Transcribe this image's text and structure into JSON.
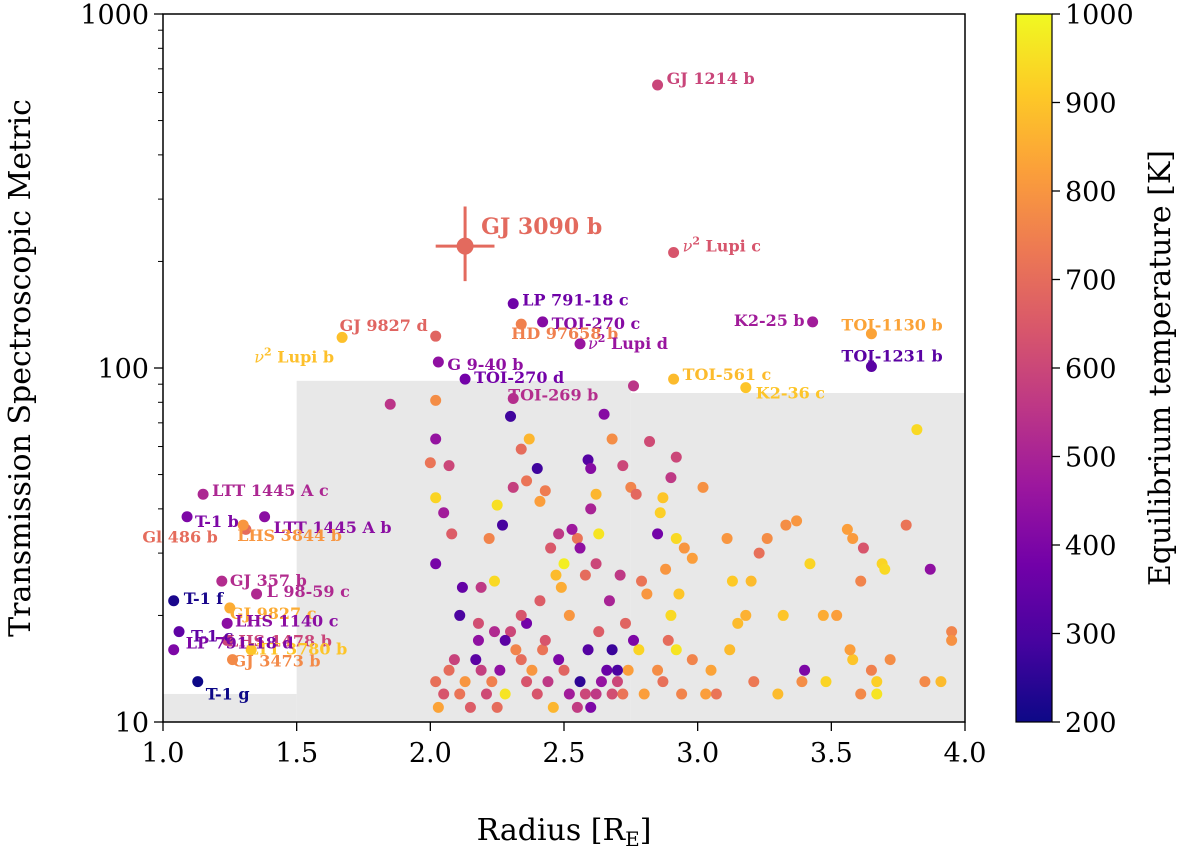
{
  "chart_data": {
    "type": "scatter",
    "xlabel": "Radius [R",
    "xlabel_sub": "E",
    "xlabel_end": "]",
    "ylabel": "Transmission Spectroscopic Metric",
    "xlim": [
      1.0,
      4.0
    ],
    "ylim": [
      10,
      1000
    ],
    "yscale": "log",
    "x_ticks": [
      "1.0",
      "1.5",
      "2.0",
      "2.5",
      "3.0",
      "3.5",
      "4.0"
    ],
    "y_ticks": [
      "10",
      "100",
      "1000"
    ],
    "colorbar": {
      "label": "Equilibrium temperature [K]",
      "range": [
        200,
        1000
      ],
      "ticks": [
        "200",
        "300",
        "400",
        "500",
        "600",
        "700",
        "800",
        "900",
        "1000"
      ],
      "colors": [
        "#0d0887",
        "#46039f",
        "#7201a8",
        "#9c179e",
        "#bd3786",
        "#d8576b",
        "#ed7953",
        "#fb9f3a",
        "#fdca26",
        "#f0f921"
      ]
    },
    "shaded_regions": [
      {
        "x": [
          1.0,
          1.5
        ],
        "y": [
          10,
          12
        ]
      },
      {
        "x": [
          1.5,
          2.75
        ],
        "y": [
          10,
          92
        ]
      },
      {
        "x": [
          2.75,
          4.0
        ],
        "y": [
          10,
          85
        ]
      }
    ],
    "highlight": {
      "name": "GJ 3090 b",
      "x": 2.13,
      "y": 221,
      "xerr": 0.11,
      "yerr_lo": 45,
      "yerr_hi": 65,
      "teq": 693
    },
    "labeled_planets": [
      {
        "name": "GJ 1214 b",
        "x": 2.85,
        "y": 630,
        "teq": 596
      },
      {
        "name": "ν² Lupi c",
        "prefix": "ν",
        "sup": "2",
        "suffix": " Lupi c",
        "x": 2.91,
        "y": 212,
        "teq": 640
      },
      {
        "name": "LP 791-18 c",
        "x": 2.31,
        "y": 152,
        "teq": 370
      },
      {
        "name": "TOI-270 c",
        "x": 2.42,
        "y": 135,
        "teq": 420
      },
      {
        "name": "GJ 9827 d",
        "x": 2.02,
        "y": 123,
        "teq": 680
      },
      {
        "name": "HD 97658 b",
        "x": 2.34,
        "y": 133,
        "teq": 750
      },
      {
        "name": "ν² Lupi d",
        "prefix": "ν",
        "sup": "2",
        "suffix": " Lupi d",
        "x": 2.56,
        "y": 117,
        "teq": 460
      },
      {
        "name": "ν² Lupi b",
        "prefix": "ν",
        "sup": "2",
        "suffix": " Lupi b",
        "x": 1.67,
        "y": 122,
        "teq": 890
      },
      {
        "name": "K2-25 b",
        "x": 3.43,
        "y": 135,
        "teq": 480
      },
      {
        "name": "TOI-1130 b",
        "x": 3.65,
        "y": 125,
        "teq": 830
      },
      {
        "name": "TOI-1231 b",
        "x": 3.65,
        "y": 101,
        "teq": 330
      },
      {
        "name": "G 9-40 b",
        "x": 2.03,
        "y": 104,
        "teq": 440
      },
      {
        "name": "TOI-270 d",
        "x": 2.13,
        "y": 93,
        "teq": 380
      },
      {
        "name": "TOI-561 c",
        "x": 2.91,
        "y": 93,
        "teq": 880
      },
      {
        "name": "K2-36 c",
        "x": 3.18,
        "y": 88,
        "teq": 900
      },
      {
        "name": "TOI-269 b",
        "x": 2.31,
        "y": 82,
        "teq": 530
      },
      {
        "name": "LTT 1445 A c",
        "x": 1.15,
        "y": 44,
        "teq": 510
      },
      {
        "name": "T-1 b",
        "x": 1.09,
        "y": 38,
        "teq": 400
      },
      {
        "name": "LTT 1445 A b",
        "x": 1.38,
        "y": 38,
        "teq": 430
      },
      {
        "name": "Gl 486 b",
        "x": 1.31,
        "y": 35,
        "teq": 700
      },
      {
        "name": "LHS 3844 b",
        "x": 1.3,
        "y": 36,
        "teq": 800
      },
      {
        "name": "GJ 357 b",
        "x": 1.22,
        "y": 25,
        "teq": 525
      },
      {
        "name": "T-1 f",
        "x": 1.04,
        "y": 22,
        "teq": 220
      },
      {
        "name": "L 98-59 c",
        "x": 1.35,
        "y": 23,
        "teq": 517
      },
      {
        "name": "GJ 9827 c",
        "x": 1.25,
        "y": 21,
        "teq": 850
      },
      {
        "name": "LHS 1140 c",
        "x": 1.24,
        "y": 19,
        "teq": 430
      },
      {
        "name": "LHS 1478 b",
        "x": 1.24,
        "y": 17,
        "teq": 595
      },
      {
        "name": "T-1 c",
        "x": 1.06,
        "y": 18,
        "teq": 340
      },
      {
        "name": "LTT 3780 b",
        "x": 1.33,
        "y": 16,
        "teq": 900
      },
      {
        "name": "LP 791-18 d",
        "x": 1.04,
        "y": 16,
        "teq": 400
      },
      {
        "name": "GJ 3473 b",
        "x": 1.26,
        "y": 15,
        "teq": 773
      },
      {
        "name": "T-1 g",
        "x": 1.13,
        "y": 13,
        "teq": 200
      }
    ],
    "points": [
      [
        1.85,
        79,
        550
      ],
      [
        2.02,
        81,
        780
      ],
      [
        2.02,
        63,
        450
      ],
      [
        2.0,
        54,
        720
      ],
      [
        2.07,
        53,
        600
      ],
      [
        2.02,
        43,
        930
      ],
      [
        2.05,
        39,
        480
      ],
      [
        2.02,
        28,
        390
      ],
      [
        2.08,
        34,
        660
      ],
      [
        2.12,
        24,
        350
      ],
      [
        2.11,
        20,
        300
      ],
      [
        2.18,
        19,
        620
      ],
      [
        2.19,
        24,
        560
      ],
      [
        2.24,
        25,
        940
      ],
      [
        2.22,
        33,
        760
      ],
      [
        2.25,
        41,
        950
      ],
      [
        2.27,
        36,
        290
      ],
      [
        2.31,
        46,
        580
      ],
      [
        2.3,
        73,
        280
      ],
      [
        2.34,
        59,
        700
      ],
      [
        2.37,
        63,
        870
      ],
      [
        2.36,
        48,
        720
      ],
      [
        2.4,
        52,
        280
      ],
      [
        2.41,
        42,
        820
      ],
      [
        2.43,
        45,
        740
      ],
      [
        2.45,
        31,
        650
      ],
      [
        2.48,
        34,
        560
      ],
      [
        2.5,
        28,
        980
      ],
      [
        2.47,
        26,
        880
      ],
      [
        2.55,
        33,
        720
      ],
      [
        2.53,
        35,
        470
      ],
      [
        2.56,
        31,
        440
      ],
      [
        2.59,
        55,
        320
      ],
      [
        2.6,
        52,
        420
      ],
      [
        2.62,
        44,
        870
      ],
      [
        2.63,
        34,
        960
      ],
      [
        2.6,
        40,
        500
      ],
      [
        2.65,
        74,
        420
      ],
      [
        2.68,
        63,
        780
      ],
      [
        2.72,
        53,
        600
      ],
      [
        2.75,
        46,
        760
      ],
      [
        2.77,
        44,
        690
      ],
      [
        2.76,
        89,
        550
      ],
      [
        2.82,
        62,
        610
      ],
      [
        2.86,
        39,
        920
      ],
      [
        2.85,
        34,
        380
      ],
      [
        2.9,
        49,
        560
      ],
      [
        2.87,
        43,
        900
      ],
      [
        2.92,
        56,
        600
      ],
      [
        3.02,
        46,
        790
      ],
      [
        2.95,
        31,
        800
      ],
      [
        2.93,
        23,
        900
      ],
      [
        2.92,
        33,
        940
      ],
      [
        2.98,
        29,
        820
      ],
      [
        3.11,
        33,
        800
      ],
      [
        3.13,
        25,
        910
      ],
      [
        3.18,
        20,
        860
      ],
      [
        3.23,
        30,
        710
      ],
      [
        3.26,
        33,
        780
      ],
      [
        3.33,
        36,
        780
      ],
      [
        3.37,
        37,
        800
      ],
      [
        3.42,
        28,
        930
      ],
      [
        3.56,
        35,
        820
      ],
      [
        3.58,
        33,
        810
      ],
      [
        3.62,
        31,
        640
      ],
      [
        3.69,
        28,
        930
      ],
      [
        3.7,
        27,
        940
      ],
      [
        3.78,
        36,
        720
      ],
      [
        3.82,
        67,
        940
      ],
      [
        3.87,
        27,
        440
      ],
      [
        3.95,
        18,
        760
      ],
      [
        3.95,
        17,
        790
      ],
      [
        3.91,
        13,
        880
      ],
      [
        3.85,
        13,
        770
      ],
      [
        3.72,
        15,
        780
      ],
      [
        3.67,
        13,
        920
      ],
      [
        3.67,
        12,
        960
      ],
      [
        3.65,
        14,
        750
      ],
      [
        3.61,
        12,
        770
      ],
      [
        3.58,
        15,
        900
      ],
      [
        3.57,
        16,
        820
      ],
      [
        3.52,
        20,
        820
      ],
      [
        3.48,
        13,
        930
      ],
      [
        3.4,
        14,
        400
      ],
      [
        3.39,
        13,
        780
      ],
      [
        3.3,
        12,
        880
      ],
      [
        3.21,
        13,
        730
      ],
      [
        3.2,
        25,
        880
      ],
      [
        3.15,
        19,
        880
      ],
      [
        3.12,
        16,
        880
      ],
      [
        3.07,
        12,
        720
      ],
      [
        3.05,
        14,
        830
      ],
      [
        3.03,
        12,
        820
      ],
      [
        2.98,
        15,
        760
      ],
      [
        2.94,
        12,
        760
      ],
      [
        2.92,
        16,
        960
      ],
      [
        2.9,
        20,
        940
      ],
      [
        2.89,
        17,
        700
      ],
      [
        2.87,
        13,
        710
      ],
      [
        2.85,
        14,
        780
      ],
      [
        2.8,
        12,
        820
      ],
      [
        2.78,
        16,
        930
      ],
      [
        2.76,
        17,
        400
      ],
      [
        2.74,
        14,
        820
      ],
      [
        2.72,
        12,
        720
      ],
      [
        2.7,
        13,
        600
      ],
      [
        2.7,
        14,
        300
      ],
      [
        2.68,
        12,
        620
      ],
      [
        2.66,
        14,
        360
      ],
      [
        2.64,
        13,
        450
      ],
      [
        2.62,
        12,
        560
      ],
      [
        2.6,
        11,
        400
      ],
      [
        2.58,
        12,
        600
      ],
      [
        2.56,
        13,
        250
      ],
      [
        2.55,
        11,
        570
      ],
      [
        2.52,
        12,
        480
      ],
      [
        2.5,
        14,
        680
      ],
      [
        2.48,
        15,
        400
      ],
      [
        2.46,
        11,
        870
      ],
      [
        2.44,
        13,
        560
      ],
      [
        2.42,
        16,
        720
      ],
      [
        2.4,
        12,
        640
      ],
      [
        2.38,
        14,
        800
      ],
      [
        2.36,
        13,
        640
      ],
      [
        2.34,
        15,
        700
      ],
      [
        2.32,
        16,
        760
      ],
      [
        2.3,
        18,
        600
      ],
      [
        2.28,
        12,
        960
      ],
      [
        2.26,
        14,
        440
      ],
      [
        2.25,
        11,
        700
      ],
      [
        2.23,
        13,
        750
      ],
      [
        2.21,
        12,
        610
      ],
      [
        2.19,
        14,
        580
      ],
      [
        2.17,
        15,
        330
      ],
      [
        2.15,
        11,
        660
      ],
      [
        2.13,
        13,
        800
      ],
      [
        2.11,
        12,
        720
      ],
      [
        2.09,
        15,
        590
      ],
      [
        2.07,
        14,
        700
      ],
      [
        2.05,
        12,
        640
      ],
      [
        2.03,
        11,
        830
      ],
      [
        2.02,
        13,
        710
      ],
      [
        2.24,
        18,
        520
      ],
      [
        2.28,
        17,
        330
      ],
      [
        2.36,
        19,
        380
      ],
      [
        2.43,
        17,
        640
      ],
      [
        2.52,
        20,
        800
      ],
      [
        2.63,
        18,
        660
      ],
      [
        2.73,
        19,
        680
      ],
      [
        2.81,
        23,
        800
      ],
      [
        2.67,
        22,
        500
      ],
      [
        2.58,
        26,
        700
      ],
      [
        2.49,
        24,
        850
      ],
      [
        2.41,
        22,
        660
      ],
      [
        2.34,
        20,
        640
      ],
      [
        2.18,
        17,
        440
      ],
      [
        2.59,
        16,
        320
      ],
      [
        2.68,
        16,
        270
      ],
      [
        3.32,
        20,
        900
      ],
      [
        3.47,
        20,
        850
      ],
      [
        3.61,
        25,
        760
      ],
      [
        2.88,
        27,
        800
      ],
      [
        2.79,
        25,
        720
      ],
      [
        2.71,
        26,
        560
      ],
      [
        2.62,
        28,
        600
      ]
    ]
  }
}
